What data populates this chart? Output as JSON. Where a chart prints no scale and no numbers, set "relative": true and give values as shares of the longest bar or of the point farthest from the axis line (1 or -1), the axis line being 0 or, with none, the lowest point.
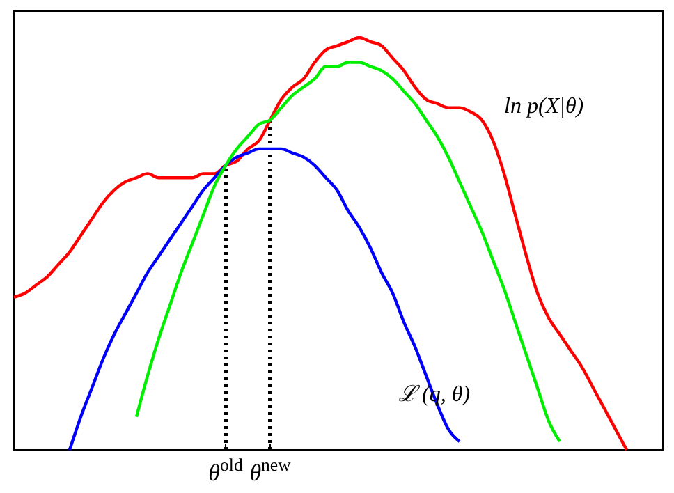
{
  "chart_data": {
    "type": "line",
    "relative": true,
    "line_style": "solid",
    "marker": "none",
    "grid": false,
    "legend": false,
    "categories": [
      null,
      null,
      null,
      null,
      null,
      null,
      null,
      null,
      null,
      null,
      null,
      null,
      null,
      null,
      null,
      null,
      null,
      null,
      null,
      "θ$^{old}$",
      null,
      null,
      null,
      "θ$^{new}$",
      null,
      null,
      null,
      null,
      null,
      null,
      null,
      null,
      null,
      null,
      null,
      null,
      null,
      null,
      null,
      null,
      null,
      null,
      null,
      null,
      null,
      null,
      null,
      null,
      null,
      null,
      null,
      null,
      null,
      null,
      null,
      null,
      null,
      null,
      null
    ],
    "series": [
      {
        "name": "ln p(X|θ)",
        "color": "#ff0000",
        "values": [
          0.37,
          0.38,
          0.4,
          0.42,
          0.45,
          0.48,
          0.52,
          0.56,
          0.6,
          0.63,
          0.65,
          0.66,
          0.67,
          0.66,
          0.66,
          0.66,
          0.66,
          0.67,
          0.67,
          0.69,
          0.7,
          0.73,
          0.75,
          0.8,
          0.85,
          0.88,
          0.9,
          0.94,
          0.97,
          0.98,
          0.99,
          1,
          0.99,
          0.98,
          0.95,
          0.92,
          0.88,
          0.85,
          0.84,
          0.83,
          0.83,
          0.82,
          0.8,
          0.75,
          0.67,
          0.57,
          0.47,
          0.38,
          0.32,
          0.28,
          0.24,
          0.2,
          0.15,
          0.1,
          0.05,
          0,
          null,
          null,
          null
        ]
      },
      {
        "name": "ℒ (q, θ)",
        "color": "#0000ff",
        "values": [
          null,
          null,
          null,
          null,
          null,
          0,
          0.08,
          0.15,
          0.22,
          0.28,
          0.33,
          0.38,
          0.43,
          0.47,
          0.51,
          0.55,
          0.59,
          0.63,
          0.66,
          0.69,
          0.71,
          0.72,
          0.73,
          0.73,
          0.73,
          0.72,
          0.71,
          0.69,
          0.66,
          0.63,
          0.58,
          0.54,
          0.49,
          0.43,
          0.38,
          0.31,
          0.25,
          0.18,
          0.11,
          0.05,
          0.02,
          null,
          null,
          null,
          null,
          null,
          null,
          null,
          null,
          null,
          null,
          null,
          null,
          null,
          null,
          null,
          null,
          null,
          null
        ]
      },
      {
        "color": "#00ee00",
        "values": [
          null,
          null,
          null,
          null,
          null,
          null,
          null,
          null,
          null,
          null,
          null,
          0.08,
          0.18,
          0.27,
          0.35,
          0.43,
          0.5,
          0.57,
          0.64,
          0.69,
          0.73,
          0.76,
          0.79,
          0.8,
          0.83,
          0.86,
          0.88,
          0.9,
          0.93,
          0.93,
          0.94,
          0.94,
          0.93,
          0.92,
          0.9,
          0.87,
          0.84,
          0.8,
          0.76,
          0.71,
          0.65,
          0.59,
          0.53,
          0.46,
          0.39,
          0.31,
          0.23,
          0.15,
          0.07,
          0.02,
          null,
          null,
          null,
          null,
          null,
          null,
          null,
          null,
          null
        ]
      }
    ],
    "ref_lines": [
      {
        "axis": "x",
        "value": "θ$^{old}$",
        "line_style": "dotted",
        "color": "#000000"
      },
      {
        "axis": "x",
        "value": "θ$^{new}$",
        "line_style": "dotted",
        "color": "#000000"
      }
    ]
  }
}
